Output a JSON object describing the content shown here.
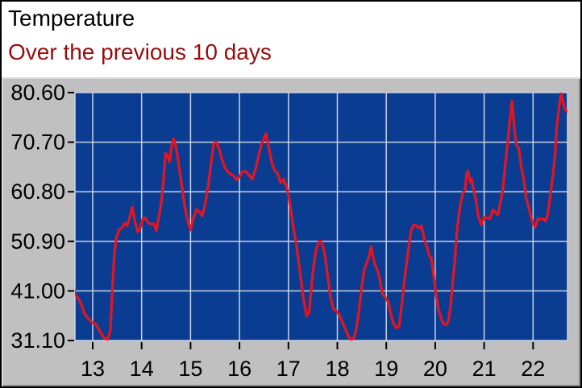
{
  "header": {
    "title": "Temperature",
    "subtitle": "Over the previous 10 days"
  },
  "chart_data": {
    "type": "line",
    "title": "Temperature",
    "subtitle": "Over the previous 10 days",
    "xlabel": "",
    "ylabel": "",
    "legend": "none",
    "grid": true,
    "x_ticks": [
      "13",
      "14",
      "15",
      "16",
      "17",
      "18",
      "19",
      "20",
      "21",
      "22"
    ],
    "x_tick_values": [
      13,
      14,
      15,
      16,
      17,
      18,
      19,
      20,
      21,
      22
    ],
    "y_ticks": [
      "80.60",
      "70.70",
      "60.80",
      "50.90",
      "41.00",
      "31.10"
    ],
    "y_tick_values": [
      80.6,
      70.7,
      60.8,
      50.9,
      41.0,
      31.1
    ],
    "xlim": [
      12.62,
      22.72
    ],
    "ylim": [
      31.1,
      80.6
    ],
    "colors": {
      "panel": "#c0c0c0",
      "plot_background": "#0a3d92",
      "grid": "#c9d1e3",
      "axis_text": "#000000",
      "tick": "#000000",
      "line": "#e8141e",
      "title": "#000000",
      "subtitle": "#9b0d0d"
    },
    "series": [
      {
        "name": "Temperature",
        "color": "#e8141e",
        "points": [
          [
            12.62,
            41.2
          ],
          [
            12.65,
            40.2
          ],
          [
            12.72,
            39.3
          ],
          [
            12.78,
            38.0
          ],
          [
            12.83,
            36.5
          ],
          [
            12.88,
            35.8
          ],
          [
            12.94,
            35.2
          ],
          [
            13.0,
            34.6
          ],
          [
            13.06,
            34.4
          ],
          [
            13.12,
            33.4
          ],
          [
            13.18,
            32.4
          ],
          [
            13.24,
            31.5
          ],
          [
            13.3,
            31.3
          ],
          [
            13.36,
            33.0
          ],
          [
            13.4,
            41.0
          ],
          [
            13.44,
            48.0
          ],
          [
            13.48,
            51.5
          ],
          [
            13.54,
            53.2
          ],
          [
            13.6,
            53.6
          ],
          [
            13.65,
            54.5
          ],
          [
            13.7,
            54.0
          ],
          [
            13.76,
            55.8
          ],
          [
            13.81,
            57.8
          ],
          [
            13.86,
            55.0
          ],
          [
            13.92,
            52.8
          ],
          [
            13.97,
            53.5
          ],
          [
            14.02,
            55.3
          ],
          [
            14.07,
            55.6
          ],
          [
            14.13,
            54.7
          ],
          [
            14.19,
            54.3
          ],
          [
            14.25,
            54.4
          ],
          [
            14.3,
            53.0
          ],
          [
            14.36,
            56.3
          ],
          [
            14.41,
            59.2
          ],
          [
            14.45,
            63.5
          ],
          [
            14.49,
            68.5
          ],
          [
            14.53,
            68.0
          ],
          [
            14.57,
            66.8
          ],
          [
            14.61,
            69.7
          ],
          [
            14.65,
            71.4
          ],
          [
            14.7,
            69.8
          ],
          [
            14.76,
            66.2
          ],
          [
            14.82,
            62.0
          ],
          [
            14.88,
            58.0
          ],
          [
            14.94,
            55.0
          ],
          [
            15.0,
            53.2
          ],
          [
            15.06,
            55.6
          ],
          [
            15.12,
            57.3
          ],
          [
            15.18,
            56.8
          ],
          [
            15.24,
            56.0
          ],
          [
            15.3,
            58.5
          ],
          [
            15.36,
            62.0
          ],
          [
            15.42,
            66.5
          ],
          [
            15.47,
            70.3
          ],
          [
            15.52,
            70.8
          ],
          [
            15.58,
            69.4
          ],
          [
            15.64,
            67.4
          ],
          [
            15.7,
            65.7
          ],
          [
            15.76,
            64.8
          ],
          [
            15.82,
            64.3
          ],
          [
            15.88,
            64.0
          ],
          [
            15.94,
            63.2
          ],
          [
            16.0,
            63.8
          ],
          [
            16.06,
            64.8
          ],
          [
            16.12,
            64.9
          ],
          [
            16.19,
            64.2
          ],
          [
            16.26,
            63.3
          ],
          [
            16.33,
            65.4
          ],
          [
            16.39,
            68.0
          ],
          [
            16.44,
            70.0
          ],
          [
            16.49,
            71.2
          ],
          [
            16.54,
            72.4
          ],
          [
            16.6,
            69.6
          ],
          [
            16.66,
            66.6
          ],
          [
            16.72,
            65.0
          ],
          [
            16.78,
            64.5
          ],
          [
            16.84,
            62.6
          ],
          [
            16.9,
            63.3
          ],
          [
            16.96,
            61.8
          ],
          [
            17.0,
            60.2
          ],
          [
            17.06,
            56.5
          ],
          [
            17.12,
            52.6
          ],
          [
            17.16,
            50.4
          ],
          [
            17.21,
            46.8
          ],
          [
            17.26,
            43.0
          ],
          [
            17.31,
            39.2
          ],
          [
            17.37,
            36.0
          ],
          [
            17.42,
            36.6
          ],
          [
            17.46,
            40.5
          ],
          [
            17.5,
            44.8
          ],
          [
            17.56,
            49.0
          ],
          [
            17.62,
            50.8
          ],
          [
            17.66,
            51.0
          ],
          [
            17.71,
            49.8
          ],
          [
            17.75,
            48.0
          ],
          [
            17.8,
            44.1
          ],
          [
            17.86,
            39.8
          ],
          [
            17.92,
            37.4
          ],
          [
            17.98,
            37.0
          ],
          [
            18.04,
            36.2
          ],
          [
            18.1,
            34.8
          ],
          [
            18.16,
            33.5
          ],
          [
            18.22,
            32.0
          ],
          [
            18.28,
            31.2
          ],
          [
            18.33,
            31.5
          ],
          [
            18.38,
            33.0
          ],
          [
            18.44,
            37.0
          ],
          [
            18.5,
            42.0
          ],
          [
            18.55,
            45.3
          ],
          [
            18.6,
            46.6
          ],
          [
            18.64,
            47.6
          ],
          [
            18.69,
            49.8
          ],
          [
            18.73,
            47.8
          ],
          [
            18.77,
            46.3
          ],
          [
            18.82,
            45.1
          ],
          [
            18.87,
            43.2
          ],
          [
            18.92,
            40.4
          ],
          [
            18.98,
            39.7
          ],
          [
            19.04,
            38.8
          ],
          [
            19.09,
            36.5
          ],
          [
            19.14,
            34.7
          ],
          [
            19.2,
            33.6
          ],
          [
            19.26,
            33.9
          ],
          [
            19.32,
            38.5
          ],
          [
            19.38,
            44.0
          ],
          [
            19.44,
            48.4
          ],
          [
            19.5,
            52.8
          ],
          [
            19.56,
            54.2
          ],
          [
            19.62,
            54.0
          ],
          [
            19.67,
            53.5
          ],
          [
            19.72,
            54.0
          ],
          [
            19.78,
            51.2
          ],
          [
            19.83,
            49.8
          ],
          [
            19.88,
            48.0
          ],
          [
            19.92,
            47.6
          ],
          [
            19.97,
            44.0
          ],
          [
            20.02,
            40.0
          ],
          [
            20.07,
            37.2
          ],
          [
            20.12,
            35.6
          ],
          [
            20.17,
            34.4
          ],
          [
            20.22,
            34.2
          ],
          [
            20.27,
            35.0
          ],
          [
            20.32,
            38.5
          ],
          [
            20.36,
            43.0
          ],
          [
            20.4,
            47.0
          ],
          [
            20.44,
            52.3
          ],
          [
            20.48,
            56.0
          ],
          [
            20.53,
            59.0
          ],
          [
            20.57,
            60.6
          ],
          [
            20.61,
            61.1
          ],
          [
            20.64,
            64.4
          ],
          [
            20.67,
            64.9
          ],
          [
            20.71,
            62.8
          ],
          [
            20.74,
            63.4
          ],
          [
            20.78,
            61.6
          ],
          [
            20.83,
            59.2
          ],
          [
            20.88,
            56.0
          ],
          [
            20.94,
            54.2
          ],
          [
            21.0,
            55.7
          ],
          [
            21.06,
            55.6
          ],
          [
            21.12,
            55.4
          ],
          [
            21.18,
            57.2
          ],
          [
            21.24,
            56.6
          ],
          [
            21.28,
            56.2
          ],
          [
            21.33,
            58.5
          ],
          [
            21.38,
            61.1
          ],
          [
            21.43,
            66.0
          ],
          [
            21.48,
            70.5
          ],
          [
            21.53,
            75.5
          ],
          [
            21.57,
            78.9
          ],
          [
            21.62,
            73.2
          ],
          [
            21.66,
            70.0
          ],
          [
            21.71,
            69.5
          ],
          [
            21.76,
            65.6
          ],
          [
            21.81,
            63.3
          ],
          [
            21.86,
            59.5
          ],
          [
            21.92,
            57.3
          ],
          [
            21.98,
            55.0
          ],
          [
            22.04,
            53.7
          ],
          [
            22.1,
            55.4
          ],
          [
            22.16,
            55.3
          ],
          [
            22.21,
            55.4
          ],
          [
            22.25,
            54.9
          ],
          [
            22.3,
            56.2
          ],
          [
            22.36,
            60.6
          ],
          [
            22.41,
            64.4
          ],
          [
            22.45,
            68.2
          ],
          [
            22.49,
            74.3
          ],
          [
            22.53,
            77.6
          ],
          [
            22.57,
            80.4
          ],
          [
            22.61,
            78.8
          ],
          [
            22.65,
            77.2
          ],
          [
            22.7,
            76.8
          ]
        ]
      }
    ]
  }
}
